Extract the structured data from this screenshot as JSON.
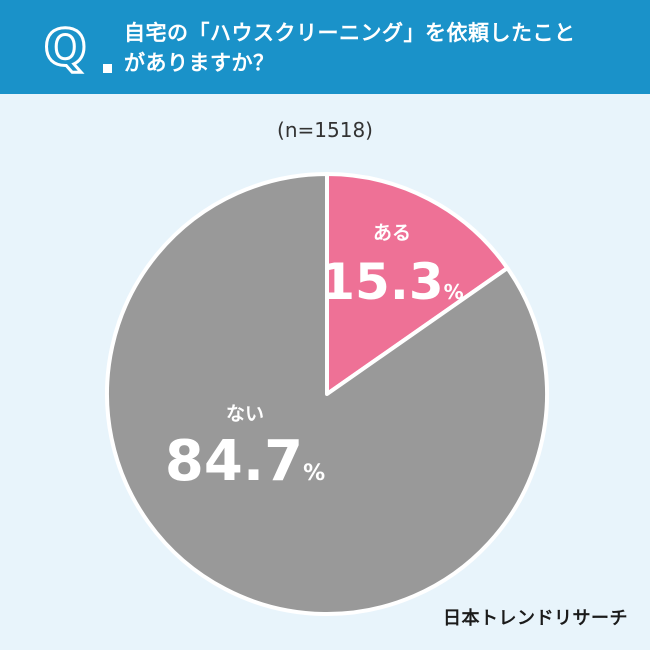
{
  "header": {
    "question_line1": "自宅の「ハウスクリーニング」を依頼したこと",
    "question_line2": "がありますか？",
    "q_letter": "Q"
  },
  "sample_size": "(n=1518)",
  "brand": "日本トレンドリサーチ",
  "colors": {
    "header": "#1a92c9",
    "background": "#e8f4fb",
    "aru": "#ee7196",
    "nai": "#999999"
  },
  "chart_data": {
    "type": "pie",
    "title": "",
    "slices": [
      {
        "label": "ある",
        "value": 15.3,
        "value_text": "15.3",
        "color": "#ee7196"
      },
      {
        "label": "ない",
        "value": 84.7,
        "value_text": "84.7",
        "color": "#999999"
      }
    ],
    "unit": "%",
    "start": "top",
    "direction": "clockwise"
  }
}
